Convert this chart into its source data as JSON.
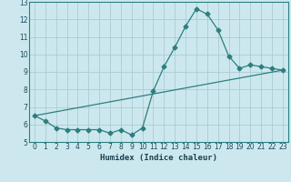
{
  "title": "",
  "xlabel": "Humidex (Indice chaleur)",
  "ylabel": "",
  "bg_color": "#cce8ee",
  "line_color": "#2d7f7f",
  "grid_color": "#aaccd4",
  "xlim": [
    -0.5,
    23.5
  ],
  "ylim": [
    5,
    13
  ],
  "yticks": [
    5,
    6,
    7,
    8,
    9,
    10,
    11,
    12,
    13
  ],
  "xticks": [
    0,
    1,
    2,
    3,
    4,
    5,
    6,
    7,
    8,
    9,
    10,
    11,
    12,
    13,
    14,
    15,
    16,
    17,
    18,
    19,
    20,
    21,
    22,
    23
  ],
  "line1_x": [
    0,
    1,
    2,
    3,
    4,
    5,
    6,
    7,
    8,
    9,
    10,
    11,
    12,
    13,
    14,
    15,
    16,
    17,
    18,
    19,
    20,
    21,
    22,
    23
  ],
  "line1_y": [
    6.5,
    6.2,
    5.8,
    5.7,
    5.7,
    5.7,
    5.7,
    5.5,
    5.7,
    5.4,
    5.8,
    7.9,
    9.3,
    10.4,
    11.6,
    12.6,
    12.3,
    11.4,
    9.9,
    9.2,
    9.4,
    9.3,
    9.2,
    9.1
  ],
  "line2_x": [
    0,
    23
  ],
  "line2_y": [
    6.5,
    9.1
  ],
  "marker": "D",
  "markersize": 2.5,
  "tick_fontsize": 5.5,
  "xlabel_fontsize": 6.5
}
